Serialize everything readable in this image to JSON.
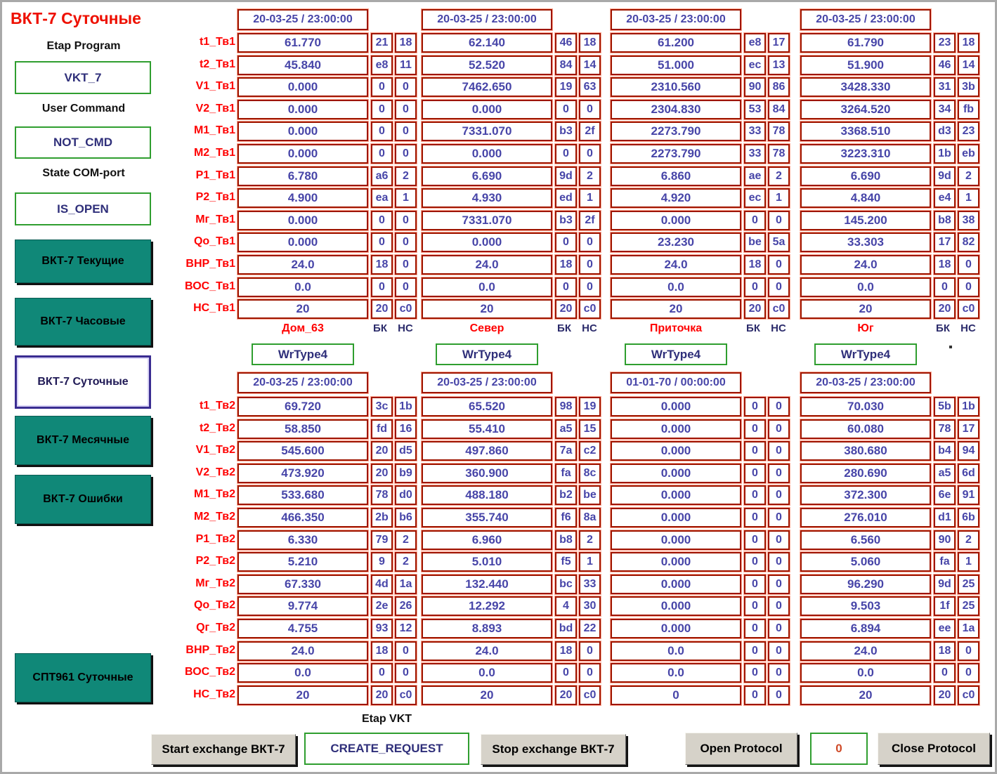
{
  "title": "ВКТ-7 Суточные",
  "colors": {
    "teal_button": "#108878",
    "red_label": "#ff0000",
    "value_blue": "#4745a8",
    "cell_border_red": "#9e1500",
    "green_border": "#2f9e2f",
    "selected_border": "#3a2d91"
  },
  "sidebar": {
    "etap_program_label": "Etap Program",
    "etap_program_value": "VKT_7",
    "user_command_label": "User Command",
    "user_command_value": "NOT_CMD",
    "state_com_label": "State COM-port",
    "state_com_value": "IS_OPEN",
    "buttons": [
      {
        "label": "ВКТ-7 Текущие",
        "selected": false
      },
      {
        "label": "ВКТ-7 Часовые",
        "selected": false
      },
      {
        "label": "ВКТ-7 Суточные",
        "selected": true
      },
      {
        "label": "ВКТ-7 Месячные",
        "selected": false
      },
      {
        "label": "ВКТ-7 Ошибки",
        "selected": false
      }
    ],
    "spt_button": {
      "label": "СПТ961 Суточные"
    }
  },
  "group_headers": [
    {
      "name": "Дом_63",
      "bk": "БК",
      "nc": "НС",
      "wrtype": "WrType4"
    },
    {
      "name": "Север",
      "bk": "БК",
      "nc": "НС",
      "wrtype": "WrType4"
    },
    {
      "name": "Приточка",
      "bk": "БК",
      "nc": "НС",
      "wrtype": "WrType4"
    },
    {
      "name": "Юг",
      "bk": "БК",
      "nc": "НС",
      "wrtype": "WrType4"
    }
  ],
  "table1": {
    "row_labels": [
      "t1_Тв1",
      "t2_Тв1",
      "V1_Тв1",
      "V2_Тв1",
      "М1_Тв1",
      "М2_Тв1",
      "Р1_Тв1",
      "Р2_Тв1",
      "Мг_Тв1",
      "Qо_Тв1",
      "ВНР_Тв1",
      "ВОС_Тв1",
      "НС_Тв1"
    ],
    "groups": [
      {
        "timestamp": "20-03-25 / 23:00:00",
        "rows": [
          [
            "61.770",
            "21",
            "18"
          ],
          [
            "45.840",
            "e8",
            "11"
          ],
          [
            "0.000",
            "0",
            "0"
          ],
          [
            "0.000",
            "0",
            "0"
          ],
          [
            "0.000",
            "0",
            "0"
          ],
          [
            "0.000",
            "0",
            "0"
          ],
          [
            "6.780",
            "a6",
            "2"
          ],
          [
            "4.900",
            "ea",
            "1"
          ],
          [
            "0.000",
            "0",
            "0"
          ],
          [
            "0.000",
            "0",
            "0"
          ],
          [
            "24.0",
            "18",
            "0"
          ],
          [
            "0.0",
            "0",
            "0"
          ],
          [
            "20",
            "20",
            "c0"
          ]
        ]
      },
      {
        "timestamp": "20-03-25 / 23:00:00",
        "rows": [
          [
            "62.140",
            "46",
            "18"
          ],
          [
            "52.520",
            "84",
            "14"
          ],
          [
            "7462.650",
            "19",
            "63"
          ],
          [
            "0.000",
            "0",
            "0"
          ],
          [
            "7331.070",
            "b3",
            "2f"
          ],
          [
            "0.000",
            "0",
            "0"
          ],
          [
            "6.690",
            "9d",
            "2"
          ],
          [
            "4.930",
            "ed",
            "1"
          ],
          [
            "7331.070",
            "b3",
            "2f"
          ],
          [
            "0.000",
            "0",
            "0"
          ],
          [
            "24.0",
            "18",
            "0"
          ],
          [
            "0.0",
            "0",
            "0"
          ],
          [
            "20",
            "20",
            "c0"
          ]
        ]
      },
      {
        "timestamp": "20-03-25 / 23:00:00",
        "rows": [
          [
            "61.200",
            "e8",
            "17"
          ],
          [
            "51.000",
            "ec",
            "13"
          ],
          [
            "2310.560",
            "90",
            "86"
          ],
          [
            "2304.830",
            "53",
            "84"
          ],
          [
            "2273.790",
            "33",
            "78"
          ],
          [
            "2273.790",
            "33",
            "78"
          ],
          [
            "6.860",
            "ae",
            "2"
          ],
          [
            "4.920",
            "ec",
            "1"
          ],
          [
            "0.000",
            "0",
            "0"
          ],
          [
            "23.230",
            "be",
            "5a"
          ],
          [
            "24.0",
            "18",
            "0"
          ],
          [
            "0.0",
            "0",
            "0"
          ],
          [
            "20",
            "20",
            "c0"
          ]
        ]
      },
      {
        "timestamp": "20-03-25 / 23:00:00",
        "rows": [
          [
            "61.790",
            "23",
            "18"
          ],
          [
            "51.900",
            "46",
            "14"
          ],
          [
            "3428.330",
            "31",
            "3b"
          ],
          [
            "3264.520",
            "34",
            "fb"
          ],
          [
            "3368.510",
            "d3",
            "23"
          ],
          [
            "3223.310",
            "1b",
            "eb"
          ],
          [
            "6.690",
            "9d",
            "2"
          ],
          [
            "4.840",
            "e4",
            "1"
          ],
          [
            "145.200",
            "b8",
            "38"
          ],
          [
            "33.303",
            "17",
            "82"
          ],
          [
            "24.0",
            "18",
            "0"
          ],
          [
            "0.0",
            "0",
            "0"
          ],
          [
            "20",
            "20",
            "c0"
          ]
        ]
      }
    ]
  },
  "table2": {
    "row_labels": [
      "t1_Тв2",
      "t2_Тв2",
      "V1_Тв2",
      "V2_Тв2",
      "М1_Тв2",
      "М2_Тв2",
      "Р1_Тв2",
      "Р2_Тв2",
      "Мг_Тв2",
      "Qо_Тв2",
      "Qг_Тв2",
      "ВНР_Тв2",
      "ВОС_Тв2",
      "НС_Тв2"
    ],
    "groups": [
      {
        "timestamp": "20-03-25 / 23:00:00",
        "rows": [
          [
            "69.720",
            "3c",
            "1b"
          ],
          [
            "58.850",
            "fd",
            "16"
          ],
          [
            "545.600",
            "20",
            "d5"
          ],
          [
            "473.920",
            "20",
            "b9"
          ],
          [
            "533.680",
            "78",
            "d0"
          ],
          [
            "466.350",
            "2b",
            "b6"
          ],
          [
            "6.330",
            "79",
            "2"
          ],
          [
            "5.210",
            "9",
            "2"
          ],
          [
            "67.330",
            "4d",
            "1a"
          ],
          [
            "9.774",
            "2e",
            "26"
          ],
          [
            "4.755",
            "93",
            "12"
          ],
          [
            "24.0",
            "18",
            "0"
          ],
          [
            "0.0",
            "0",
            "0"
          ],
          [
            "20",
            "20",
            "c0"
          ]
        ]
      },
      {
        "timestamp": "20-03-25 / 23:00:00",
        "rows": [
          [
            "65.520",
            "98",
            "19"
          ],
          [
            "55.410",
            "a5",
            "15"
          ],
          [
            "497.860",
            "7a",
            "c2"
          ],
          [
            "360.900",
            "fa",
            "8c"
          ],
          [
            "488.180",
            "b2",
            "be"
          ],
          [
            "355.740",
            "f6",
            "8a"
          ],
          [
            "6.960",
            "b8",
            "2"
          ],
          [
            "5.010",
            "f5",
            "1"
          ],
          [
            "132.440",
            "bc",
            "33"
          ],
          [
            "12.292",
            "4",
            "30"
          ],
          [
            "8.893",
            "bd",
            "22"
          ],
          [
            "24.0",
            "18",
            "0"
          ],
          [
            "0.0",
            "0",
            "0"
          ],
          [
            "20",
            "20",
            "c0"
          ]
        ]
      },
      {
        "timestamp": "01-01-70 / 00:00:00",
        "rows": [
          [
            "0.000",
            "0",
            "0"
          ],
          [
            "0.000",
            "0",
            "0"
          ],
          [
            "0.000",
            "0",
            "0"
          ],
          [
            "0.000",
            "0",
            "0"
          ],
          [
            "0.000",
            "0",
            "0"
          ],
          [
            "0.000",
            "0",
            "0"
          ],
          [
            "0.000",
            "0",
            "0"
          ],
          [
            "0.000",
            "0",
            "0"
          ],
          [
            "0.000",
            "0",
            "0"
          ],
          [
            "0.000",
            "0",
            "0"
          ],
          [
            "0.000",
            "0",
            "0"
          ],
          [
            "0.0",
            "0",
            "0"
          ],
          [
            "0.0",
            "0",
            "0"
          ],
          [
            "0",
            "0",
            "0"
          ]
        ]
      },
      {
        "timestamp": "20-03-25 / 23:00:00",
        "rows": [
          [
            "70.030",
            "5b",
            "1b"
          ],
          [
            "60.080",
            "78",
            "17"
          ],
          [
            "380.680",
            "b4",
            "94"
          ],
          [
            "280.690",
            "a5",
            "6d"
          ],
          [
            "372.300",
            "6e",
            "91"
          ],
          [
            "276.010",
            "d1",
            "6b"
          ],
          [
            "6.560",
            "90",
            "2"
          ],
          [
            "5.060",
            "fa",
            "1"
          ],
          [
            "96.290",
            "9d",
            "25"
          ],
          [
            "9.503",
            "1f",
            "25"
          ],
          [
            "6.894",
            "ee",
            "1a"
          ],
          [
            "24.0",
            "18",
            "0"
          ],
          [
            "0.0",
            "0",
            "0"
          ],
          [
            "20",
            "20",
            "c0"
          ]
        ]
      }
    ]
  },
  "footer": {
    "etap_vkt_label": "Etap VKT",
    "start_button": "Start exchange ВКТ-7",
    "request_value": "CREATE_REQUEST",
    "stop_button": "Stop exchange ВКТ-7",
    "open_protocol": "Open Protocol",
    "protocol_value": "0",
    "close_protocol": "Close Protocol"
  }
}
